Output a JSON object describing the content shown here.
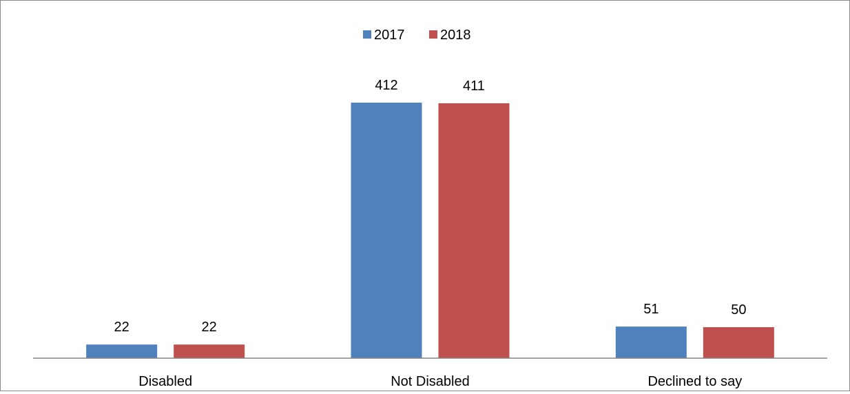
{
  "chart_data": {
    "type": "bar",
    "categories": [
      "Disabled",
      "Not Disabled",
      "Declined to say"
    ],
    "series": [
      {
        "name": "2017",
        "color": "#4F81BD",
        "values": [
          22,
          412,
          51
        ]
      },
      {
        "name": "2018",
        "color": "#C0504D",
        "values": [
          22,
          411,
          50
        ]
      }
    ],
    "title": "",
    "xlabel": "",
    "ylabel": "",
    "ylim": [
      0,
      412
    ],
    "grid": false,
    "legend_position": "top-center",
    "data_labels": true
  }
}
